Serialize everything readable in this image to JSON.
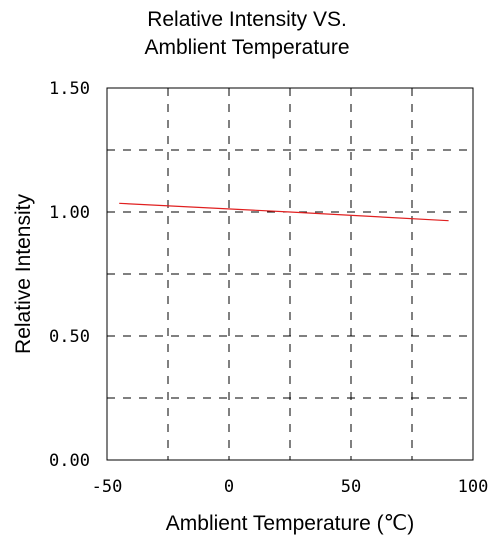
{
  "chart_data": {
    "type": "line",
    "title": "Relative Intensity VS.",
    "subtitle": "Amblient Temperature",
    "xlabel": "Amblient Temperature (℃)",
    "ylabel": "Relative Intensity",
    "xlim": [
      -50,
      100
    ],
    "ylim": [
      0,
      1.5
    ],
    "x_ticks": [
      "-50",
      "0",
      "50",
      "100"
    ],
    "x_tick_values": [
      -50,
      0,
      50,
      100
    ],
    "y_ticks": [
      "0.00",
      "0.50",
      "1.00",
      "1.50"
    ],
    "y_tick_values": [
      0,
      0.5,
      1.0,
      1.5
    ],
    "grid": true,
    "grid_style": "dashed",
    "x_grid_values": [
      -25,
      0,
      25,
      50,
      75
    ],
    "y_grid_values": [
      0.25,
      0.5,
      0.75,
      1.0,
      1.25
    ],
    "series": [
      {
        "color": "#e02020",
        "x": [
          -45,
          25,
          90
        ],
        "y": [
          1.035,
          1.0,
          0.965
        ]
      }
    ]
  }
}
